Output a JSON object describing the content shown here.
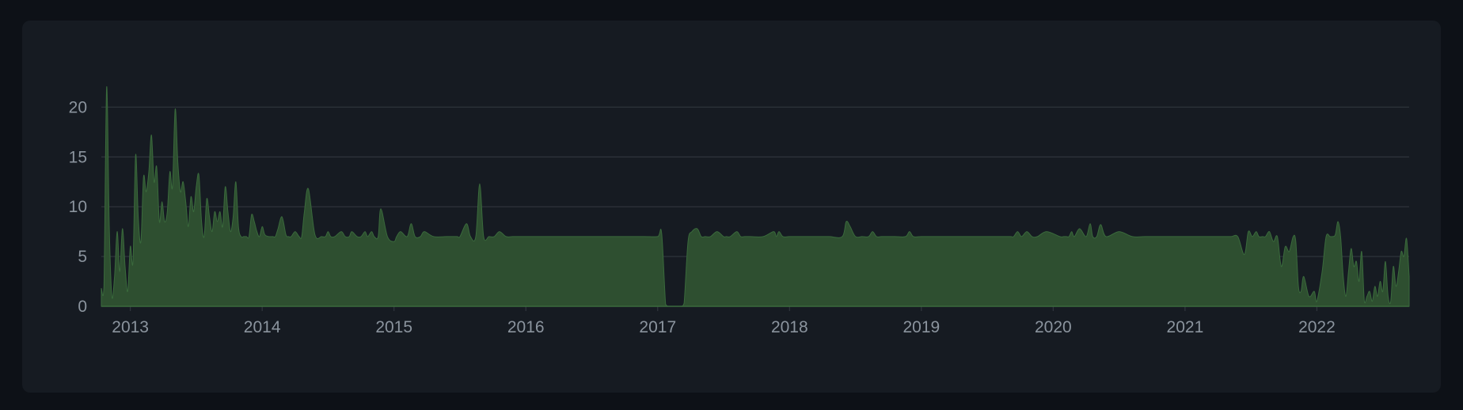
{
  "theme": {
    "page_bg": "#0d1117",
    "card_bg": "#161b22",
    "grid_color": "#30363d",
    "area_fill": "#2e4f30",
    "tick_color": "#8b949e"
  },
  "chart_data": {
    "type": "area",
    "title": "",
    "xlabel": "",
    "ylabel": "",
    "grid": true,
    "legend": "none",
    "xlim": [
      2012.78,
      2022.7
    ],
    "ylim": [
      0,
      24
    ],
    "x_ticks": [
      "2013",
      "2014",
      "2015",
      "2016",
      "2017",
      "2018",
      "2019",
      "2020",
      "2021",
      "2022"
    ],
    "y_ticks": [
      "0",
      "5",
      "10",
      "15",
      "20"
    ],
    "series": [
      {
        "x": [
          2012.78,
          2012.8,
          2012.82,
          2012.84,
          2012.86,
          2012.88,
          2012.9,
          2012.92,
          2012.94,
          2012.96,
          2012.98,
          2013.0,
          2013.02,
          2013.04,
          2013.06,
          2013.08,
          2013.1,
          2013.12,
          2013.14,
          2013.16,
          2013.18,
          2013.2,
          2013.22,
          2013.24,
          2013.26,
          2013.28,
          2013.3,
          2013.32,
          2013.34,
          2013.36,
          2013.38,
          2013.4,
          2013.42,
          2013.44,
          2013.46,
          2013.48,
          2013.5,
          2013.52,
          2013.54,
          2013.56,
          2013.58,
          2013.6,
          2013.62,
          2013.64,
          2013.66,
          2013.68,
          2013.7,
          2013.72,
          2013.74,
          2013.76,
          2013.78,
          2013.8,
          2013.82,
          2013.84,
          2013.86,
          2013.88,
          2013.9,
          2013.92,
          2013.94,
          2013.96,
          2013.98,
          2014.0,
          2014.02,
          2014.05,
          2014.08,
          2014.1,
          2014.12,
          2014.15,
          2014.18,
          2014.2,
          2014.22,
          2014.25,
          2014.28,
          2014.3,
          2014.32,
          2014.35,
          2014.4,
          2014.45,
          2014.48,
          2014.5,
          2014.52,
          2014.55,
          2014.6,
          2014.63,
          2014.66,
          2014.68,
          2014.72,
          2014.75,
          2014.78,
          2014.8,
          2014.83,
          2014.85,
          2014.88,
          2014.9,
          2014.95,
          2015.0,
          2015.02,
          2015.05,
          2015.1,
          2015.13,
          2015.16,
          2015.2,
          2015.23,
          2015.3,
          2015.4,
          2015.44,
          2015.48,
          2015.5,
          2015.55,
          2015.58,
          2015.62,
          2015.65,
          2015.68,
          2015.72,
          2015.76,
          2015.8,
          2015.85,
          2015.9,
          2015.95,
          2016.0,
          2016.04,
          2016.08,
          2016.12,
          2016.15,
          2016.17,
          2016.2,
          2016.25,
          2016.28,
          2016.3,
          2016.35,
          2016.4,
          2016.5,
          2016.6,
          2016.7,
          2016.8,
          2016.9,
          2017.0,
          2017.03,
          2017.06,
          2017.08,
          2017.1,
          2017.14,
          2017.18,
          2017.2,
          2017.23,
          2017.26,
          2017.3,
          2017.33,
          2017.36,
          2017.4,
          2017.45,
          2017.5,
          2017.52,
          2017.55,
          2017.6,
          2017.63,
          2017.66,
          2017.7,
          2017.8,
          2017.88,
          2017.9,
          2017.92,
          2017.95,
          2018.0,
          2018.1,
          2018.2,
          2018.3,
          2018.4,
          2018.43,
          2018.46,
          2018.5,
          2018.55,
          2018.6,
          2018.63,
          2018.66,
          2018.7,
          2018.8,
          2018.88,
          2018.91,
          2018.94,
          2019.0,
          2019.1,
          2019.2,
          2019.3,
          2019.4,
          2019.5,
          2019.6,
          2019.65,
          2019.68,
          2019.7,
          2019.73,
          2019.76,
          2019.8,
          2019.84,
          2019.88,
          2019.95,
          2020.05,
          2020.08,
          2020.1,
          2020.12,
          2020.14,
          2020.16,
          2020.2,
          2020.25,
          2020.28,
          2020.3,
          2020.33,
          2020.36,
          2020.4,
          2020.5,
          2020.6,
          2020.7,
          2020.8,
          2020.9,
          2021.0,
          2021.1,
          2021.15,
          2021.18,
          2021.22,
          2021.26,
          2021.3,
          2021.35,
          2021.4,
          2021.45,
          2021.48,
          2021.51,
          2021.54,
          2021.56,
          2021.59,
          2021.61,
          2021.64,
          2021.67,
          2021.7,
          2021.73,
          2021.76,
          2021.79,
          2021.82,
          2021.84,
          2021.86,
          2021.88,
          2021.9,
          2021.94,
          2021.98,
          2022.0,
          2022.04,
          2022.07,
          2022.1,
          2022.12,
          2022.14,
          2022.16,
          2022.18,
          2022.2,
          2022.22,
          2022.24,
          2022.26,
          2022.28,
          2022.3,
          2022.32,
          2022.34,
          2022.36,
          2022.38,
          2022.4,
          2022.42,
          2022.44,
          2022.46,
          2022.48,
          2022.5,
          2022.52,
          2022.54,
          2022.56,
          2022.58,
          2022.6,
          2022.62,
          2022.64,
          2022.66,
          2022.68,
          2022.7
        ],
        "values": [
          1.8,
          2.0,
          22.0,
          8.0,
          1.0,
          3.0,
          7.5,
          3.5,
          7.8,
          4.0,
          1.5,
          6.0,
          4.5,
          15.2,
          9.0,
          6.5,
          13.0,
          11.5,
          13.5,
          17.2,
          12.5,
          14.0,
          8.5,
          10.5,
          8.5,
          9.5,
          13.5,
          12.0,
          19.8,
          14.5,
          11.5,
          12.5,
          10.5,
          8.0,
          11.0,
          9.5,
          12.0,
          13.2,
          8.5,
          7.0,
          10.8,
          9.0,
          7.5,
          9.5,
          8.5,
          9.5,
          8.0,
          12.0,
          9.5,
          7.5,
          9.0,
          12.5,
          8.0,
          7.0,
          7.0,
          7.0,
          7.0,
          9.2,
          8.5,
          7.5,
          7.0,
          8.0,
          7.2,
          7.0,
          7.0,
          7.0,
          7.8,
          9.0,
          7.2,
          7.0,
          7.0,
          7.5,
          7.0,
          7.0,
          9.5,
          11.8,
          7.2,
          7.0,
          7.0,
          7.5,
          7.0,
          7.0,
          7.5,
          7.0,
          7.0,
          7.5,
          7.0,
          7.0,
          7.5,
          7.0,
          7.5,
          7.0,
          7.0,
          9.8,
          7.0,
          6.5,
          7.0,
          7.5,
          7.0,
          8.3,
          7.0,
          7.0,
          7.5,
          7.0,
          7.0,
          7.0,
          7.0,
          7.0,
          8.3,
          7.0,
          7.0,
          12.3,
          7.0,
          7.0,
          7.0,
          7.5,
          7.0,
          7.0,
          7.0,
          7.0,
          7.0,
          7.0,
          7.0,
          7.0,
          7.0,
          7.0,
          7.0,
          7.0,
          7.0,
          7.0,
          7.0,
          7.0,
          7.0,
          7.0,
          7.0,
          7.0,
          7.0,
          7.3,
          0.2,
          0.0,
          0.0,
          0.0,
          0.0,
          0.3,
          6.5,
          7.5,
          7.8,
          7.0,
          7.0,
          7.0,
          7.5,
          7.0,
          7.0,
          7.0,
          7.5,
          7.0,
          7.0,
          7.0,
          7.0,
          7.5,
          7.0,
          7.5,
          7.0,
          7.0,
          7.0,
          7.0,
          7.0,
          7.0,
          8.5,
          8.0,
          7.0,
          7.0,
          7.0,
          7.5,
          7.0,
          7.0,
          7.0,
          7.0,
          7.5,
          7.0,
          7.0,
          7.0,
          7.0,
          7.0,
          7.0,
          7.0,
          7.0,
          7.0,
          7.0,
          7.0,
          7.5,
          7.0,
          7.5,
          7.0,
          7.0,
          7.5,
          7.0,
          7.0,
          7.0,
          7.0,
          7.5,
          7.0,
          7.8,
          7.0,
          8.3,
          7.0,
          7.0,
          8.2,
          7.0,
          7.5,
          7.0,
          7.0,
          7.0,
          7.0,
          7.0,
          7.0,
          7.0,
          7.0,
          7.0,
          7.0,
          7.0,
          7.0,
          7.0,
          5.2,
          7.5,
          7.0,
          7.5,
          7.0,
          7.0,
          7.0,
          7.5,
          6.5,
          7.0,
          4.0,
          6.0,
          5.5,
          7.0,
          6.5,
          2.0,
          1.5,
          3.0,
          1.0,
          1.5,
          0.5,
          3.5,
          7.0,
          7.0,
          7.0,
          7.2,
          8.5,
          7.0,
          3.0,
          1.0,
          3.5,
          5.8,
          4.0,
          4.5,
          2.5,
          5.5,
          0.5,
          1.0,
          1.5,
          0.5,
          2.0,
          1.0,
          2.5,
          1.5,
          4.5,
          1.0,
          0.5,
          4.0,
          2.0,
          3.5,
          5.5,
          5.0,
          6.8,
          3.0
        ]
      }
    ]
  }
}
